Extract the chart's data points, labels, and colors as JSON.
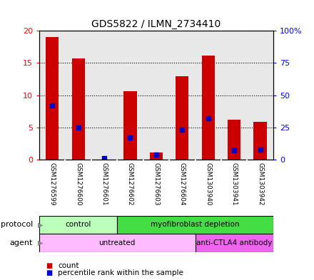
{
  "title": "GDS5822 / ILMN_2734410",
  "samples": [
    "GSM1276599",
    "GSM1276600",
    "GSM1276601",
    "GSM1276602",
    "GSM1276603",
    "GSM1276604",
    "GSM1303940",
    "GSM1303941",
    "GSM1303942"
  ],
  "count_values": [
    19.0,
    15.7,
    0.05,
    10.6,
    1.1,
    13.0,
    16.1,
    6.2,
    5.9
  ],
  "percentile_values": [
    42,
    25,
    1,
    17,
    4,
    23,
    32,
    7,
    8
  ],
  "ylim_left": [
    0,
    20
  ],
  "ylim_right": [
    0,
    100
  ],
  "yticks_left": [
    0,
    5,
    10,
    15,
    20
  ],
  "yticks_right": [
    0,
    25,
    50,
    75,
    100
  ],
  "ytick_labels_left": [
    "0",
    "5",
    "10",
    "15",
    "20"
  ],
  "ytick_labels_right": [
    "0",
    "25",
    "50",
    "75",
    "100%"
  ],
  "bar_color": "#cc0000",
  "percentile_color": "#0000cc",
  "bar_width": 0.5,
  "protocol_groups": [
    {
      "label": "control",
      "start": 0,
      "end": 3,
      "color": "#bbffbb"
    },
    {
      "label": "myofibroblast depletion",
      "start": 3,
      "end": 9,
      "color": "#44dd44"
    }
  ],
  "agent_groups": [
    {
      "label": "untreated",
      "start": 0,
      "end": 6,
      "color": "#ffbbff"
    },
    {
      "label": "anti-CTLA4 antibody",
      "start": 6,
      "end": 9,
      "color": "#ee66ee"
    }
  ],
  "legend_count_label": "count",
  "legend_percentile_label": "percentile rank within the sample",
  "sample_box_color": "#cccccc",
  "plot_bg_color": "#e8e8e8"
}
